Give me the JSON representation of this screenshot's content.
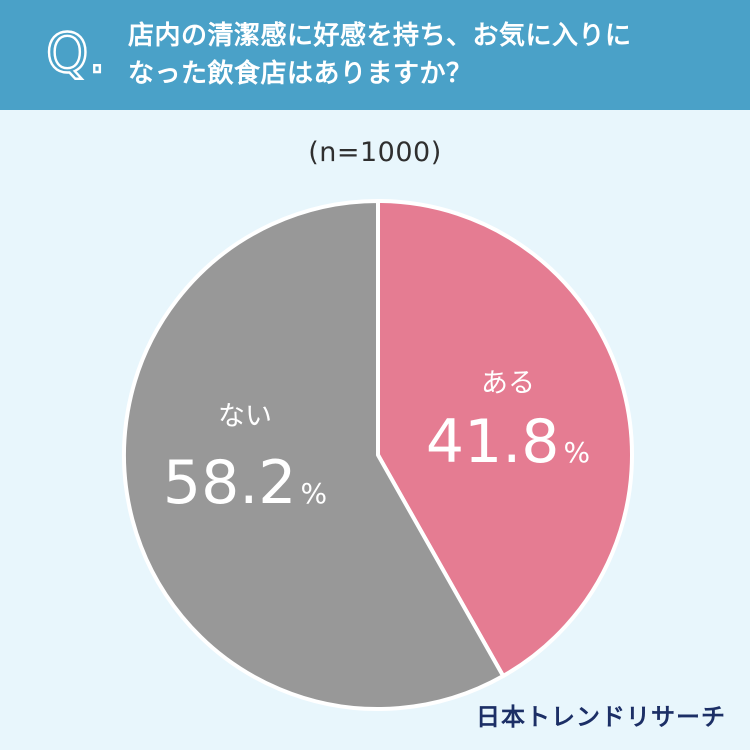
{
  "header": {
    "q_mark": "Q.",
    "question_line1": "店内の清潔感に好感を持ち、お気に入りに",
    "question_line2": "なった飲食店はありますか？"
  },
  "sample_size": "(n=1000)",
  "colors": {
    "header_bg": "#4aa1c8",
    "background": "#e8f6fc",
    "aru": "#e57c92",
    "nai": "#989898",
    "logo": "#1c2f66"
  },
  "chart_data": {
    "type": "pie",
    "categories": [
      "ある",
      "ない"
    ],
    "values": [
      41.8,
      58.2
    ],
    "value_labels": [
      "41.8",
      "58.2"
    ],
    "unit": "%",
    "start": "12 o'clock",
    "direction": "clockwise"
  },
  "brand": {
    "logo_text": "日本トレンドリサーチ"
  }
}
